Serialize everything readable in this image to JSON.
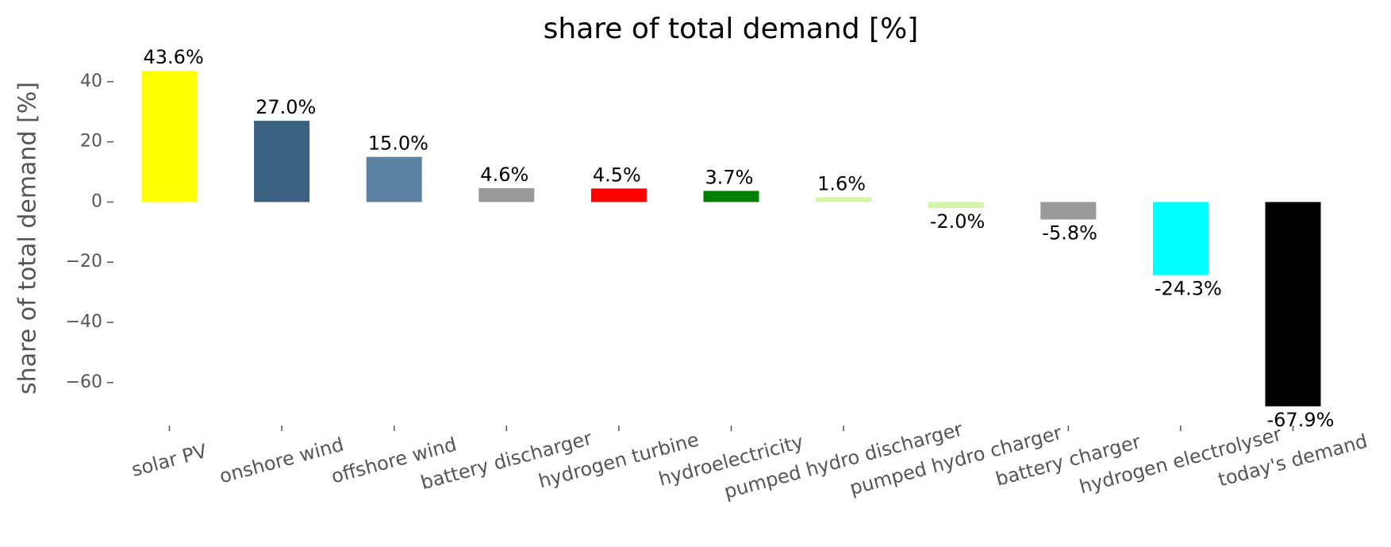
{
  "chart_data": {
    "type": "bar",
    "title": "share of total demand [%]",
    "y_label": "share of total demand [%]",
    "categories": [
      "solar PV",
      "onshore wind",
      "offshore wind",
      "battery discharger",
      "hydrogen turbine",
      "hydroelectricity",
      "pumped hydro discharger",
      "pumped hydro charger",
      "battery charger",
      "hydrogen electrolyser",
      "today's demand"
    ],
    "values": [
      43.6,
      27.0,
      15.0,
      4.6,
      4.5,
      3.7,
      1.6,
      -2.0,
      -5.8,
      -24.3,
      -67.9
    ],
    "value_labels": [
      "43.6%",
      "27.0%",
      "15.0%",
      "4.6%",
      "4.5%",
      "3.7%",
      "1.6%",
      "-2.0%",
      "-5.8%",
      "-24.3%",
      "-67.9%"
    ],
    "colors": [
      "#ffff00",
      "#3b6182",
      "#5c82a3",
      "#999999",
      "#ff0000",
      "#008000",
      "#d2f5a6",
      "#d2f5a6",
      "#999999",
      "#00ffff",
      "#000000"
    ],
    "ylim": [
      -73.5,
      49.2
    ],
    "yticks": [
      {
        "value": -60,
        "label": "−60"
      },
      {
        "value": -40,
        "label": "−40"
      },
      {
        "value": -20,
        "label": "−20"
      },
      0,
      20,
      40
    ],
    "grid": false
  }
}
